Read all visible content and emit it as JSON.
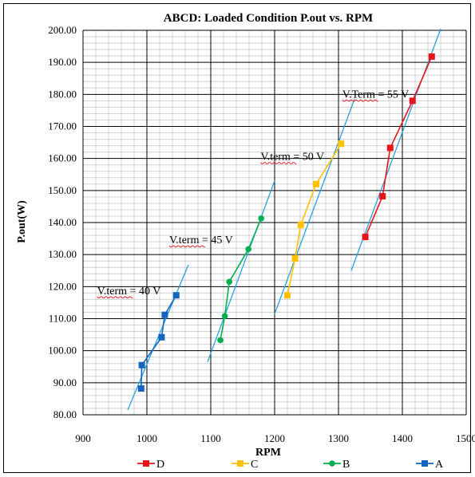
{
  "chart_data": {
    "type": "scatter",
    "title": "ABCD: Loaded Condition P.out vs. RPM",
    "xlabel": "RPM",
    "ylabel": "P.out(W)",
    "xlim": [
      900,
      1500
    ],
    "ylim": [
      80,
      200
    ],
    "x_ticks": [
      "900",
      "1000",
      "1100",
      "1200",
      "1300",
      "1400",
      "1500"
    ],
    "y_ticks": [
      "80.00",
      "90.00",
      "100.00",
      "110.00",
      "120.00",
      "130.00",
      "140.00",
      "150.00",
      "160.00",
      "170.00",
      "180.00",
      "190.00",
      "200.00"
    ],
    "grid": true,
    "minor_grid": true,
    "legend_position": "bottom",
    "series": [
      {
        "name": "D",
        "color": "#e8141c",
        "marker": "square",
        "points": [
          [
            1342,
            135.5
          ],
          [
            1369,
            148.2
          ],
          [
            1381,
            163.3
          ],
          [
            1416,
            178.0
          ],
          [
            1446,
            191.8
          ]
        ]
      },
      {
        "name": "C",
        "color": "#ffc000",
        "marker": "square",
        "points": [
          [
            1220,
            117.3
          ],
          [
            1232,
            128.8
          ],
          [
            1241,
            139.3
          ],
          [
            1265,
            152.0
          ],
          [
            1304,
            164.6
          ]
        ]
      },
      {
        "name": "B",
        "color": "#00b050",
        "marker": "circle",
        "points": [
          [
            1115,
            103.3
          ],
          [
            1122,
            110.8
          ],
          [
            1129,
            121.5
          ],
          [
            1159,
            131.7
          ],
          [
            1179,
            141.3
          ]
        ]
      },
      {
        "name": "A",
        "color": "#1565c0",
        "marker": "square",
        "points": [
          [
            991,
            88.2
          ],
          [
            992,
            95.5
          ],
          [
            1023,
            104.2
          ],
          [
            1028,
            111.2
          ],
          [
            1046,
            117.3
          ]
        ]
      }
    ],
    "trendlines": [
      {
        "series": "A",
        "color": "#29a3dc",
        "points": [
          [
            970,
            81.5
          ],
          [
            1065,
            126.8
          ]
        ]
      },
      {
        "series": "B",
        "color": "#29a3dc",
        "points": [
          [
            1095,
            96.5
          ],
          [
            1200,
            153.0
          ]
        ]
      },
      {
        "series": "C",
        "color": "#29a3dc",
        "points": [
          [
            1200,
            111.5
          ],
          [
            1325,
            178.5
          ]
        ]
      },
      {
        "series": "D",
        "color": "#29a3dc",
        "points": [
          [
            1320,
            125.0
          ],
          [
            1460,
            200.5
          ]
        ]
      }
    ],
    "annotations": [
      {
        "text": "V.term = 40 V",
        "x": 922,
        "y": 117.6
      },
      {
        "text": "V.term = 45 V",
        "x": 1035,
        "y": 133.5
      },
      {
        "text": "V.term = 50 V",
        "x": 1178,
        "y": 159.5
      },
      {
        "text": "V.Term = 55 V",
        "x": 1306,
        "y": 179.0
      }
    ]
  }
}
